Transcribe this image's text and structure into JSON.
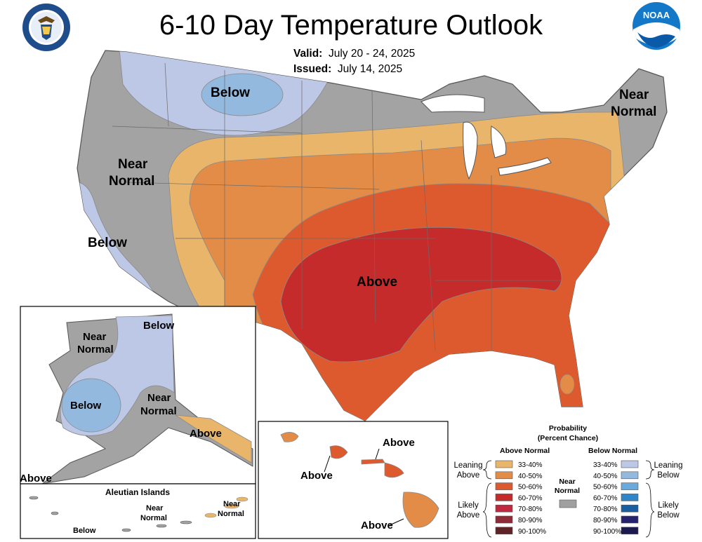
{
  "title": "6-10 Day Temperature Outlook",
  "valid_label": "Valid:",
  "valid_dates": "July 20 - 24, 2025",
  "issued_label": "Issued:",
  "issued_date": "July 14, 2025",
  "logos": {
    "left": "department-of-commerce-seal",
    "right": "noaa-logo",
    "right_text": "NOAA"
  },
  "regions": {
    "conus_north_below": "Below",
    "conus_west_near": [
      "Near",
      "Normal"
    ],
    "conus_coast_below": "Below",
    "conus_center_above": "Above",
    "conus_ne_near": [
      "Near",
      "Normal"
    ],
    "ak_near_north": [
      "Near",
      "Normal"
    ],
    "ak_below_north": "Below",
    "ak_below_center": "Below",
    "ak_near_south": [
      "Near",
      "Normal"
    ],
    "ak_above_se": "Above",
    "ak_above_sw": "Above",
    "hi_above_1": "Above",
    "hi_above_2": "Above",
    "hi_above_3": "Above",
    "aleutian_title": "Aleutian Islands",
    "aleutian_below": "Below",
    "aleutian_near_1": [
      "Near",
      "Normal"
    ],
    "aleutian_near_2": [
      "Near",
      "Normal"
    ]
  },
  "legend": {
    "title": [
      "Probability",
      "(Percent Chance)"
    ],
    "above_header": "Above Normal",
    "below_header": "Below Normal",
    "near_label": [
      "Near",
      "Normal"
    ],
    "near_color": "#a0a0a0",
    "leaning_above": [
      "Leaning",
      "Above"
    ],
    "likely_above": [
      "Likely",
      "Above"
    ],
    "leaning_below": [
      "Leaning",
      "Below"
    ],
    "likely_below": [
      "Likely",
      "Below"
    ],
    "above_bins": [
      {
        "label": "33-40%",
        "color": "#e8b56b"
      },
      {
        "label": "40-50%",
        "color": "#e38c47"
      },
      {
        "label": "50-60%",
        "color": "#dd5a2e"
      },
      {
        "label": "60-70%",
        "color": "#c52b2b"
      },
      {
        "label": "70-80%",
        "color": "#c0283f"
      },
      {
        "label": "80-90%",
        "color": "#8e2b36"
      },
      {
        "label": "90-100%",
        "color": "#5e2326"
      }
    ],
    "below_bins": [
      {
        "label": "33-40%",
        "color": "#bcc8e6"
      },
      {
        "label": "40-50%",
        "color": "#93b9df"
      },
      {
        "label": "50-60%",
        "color": "#6aa9dc"
      },
      {
        "label": "60-70%",
        "color": "#2e86c8"
      },
      {
        "label": "70-80%",
        "color": "#1a5fa1"
      },
      {
        "label": "80-90%",
        "color": "#26236e"
      },
      {
        "label": "90-100%",
        "color": "#1c1a4d"
      }
    ]
  }
}
